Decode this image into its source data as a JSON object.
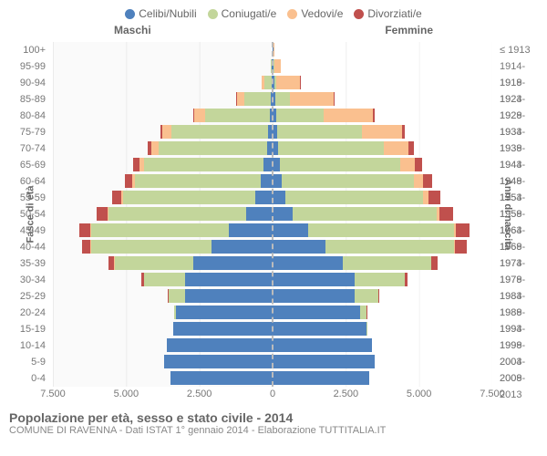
{
  "meta": {
    "type": "population-pyramid",
    "title": "Popolazione per età, sesso e stato civile - 2014",
    "subtitle": "COMUNE DI RAVENNA - Dati ISTAT 1° gennaio 2014 - Elaborazione TUTTITALIA.IT",
    "gender_labels": {
      "male": "Maschi",
      "female": "Femmine"
    },
    "y_axis_left_label": "Fasce di età",
    "y_axis_right_label": "Anni di nascita"
  },
  "legend": [
    {
      "key": "single",
      "label": "Celibi/Nubili",
      "color": "#4f81bd"
    },
    {
      "key": "married",
      "label": "Coniugati/e",
      "color": "#c3d69b"
    },
    {
      "key": "widowed",
      "label": "Vedovi/e",
      "color": "#fac08f"
    },
    {
      "key": "divorced",
      "label": "Divorziati/e",
      "color": "#c0504d"
    }
  ],
  "colors": {
    "single": "#4f81bd",
    "married": "#c3d69b",
    "widowed": "#fac08f",
    "divorced": "#c0504d",
    "grid": "#e0e0e0",
    "center": "#bbbbbb",
    "text": "#666666"
  },
  "x_axis": {
    "max": 7500,
    "ticks": [
      7500,
      5000,
      2500,
      0,
      2500,
      5000,
      7500
    ],
    "tick_labels": [
      "7.500",
      "5.000",
      "2.500",
      "0",
      "2.500",
      "5.000",
      "7.500"
    ]
  },
  "age_groups": [
    "100+",
    "95-99",
    "90-94",
    "85-89",
    "80-84",
    "75-79",
    "70-74",
    "65-69",
    "60-64",
    "55-59",
    "50-54",
    "45-49",
    "40-44",
    "35-39",
    "30-34",
    "25-29",
    "20-24",
    "15-19",
    "10-14",
    "5-9",
    "0-4"
  ],
  "birth_years": [
    "≤ 1913",
    "1914-1918",
    "1919-1923",
    "1924-1928",
    "1929-1933",
    "1934-1938",
    "1939-1943",
    "1944-1948",
    "1949-1953",
    "1954-1958",
    "1959-1963",
    "1964-1968",
    "1969-1973",
    "1974-1978",
    "1979-1983",
    "1984-1988",
    "1989-1993",
    "1994-1998",
    "1999-2003",
    "2004-2008",
    "2009-2013"
  ],
  "data": {
    "male": [
      {
        "single": 10,
        "married": 0,
        "widowed": 0,
        "divorced": 0
      },
      {
        "single": 30,
        "married": 20,
        "widowed": 20,
        "divorced": 0
      },
      {
        "single": 40,
        "married": 250,
        "widowed": 80,
        "divorced": 0
      },
      {
        "single": 60,
        "married": 900,
        "widowed": 260,
        "divorced": 20
      },
      {
        "single": 100,
        "married": 2200,
        "widowed": 380,
        "divorced": 40
      },
      {
        "single": 150,
        "married": 3300,
        "widowed": 320,
        "divorced": 60
      },
      {
        "single": 200,
        "married": 3700,
        "widowed": 250,
        "divorced": 120
      },
      {
        "single": 300,
        "married": 4100,
        "widowed": 150,
        "divorced": 200
      },
      {
        "single": 400,
        "married": 4300,
        "widowed": 90,
        "divorced": 260
      },
      {
        "single": 600,
        "married": 4500,
        "widowed": 60,
        "divorced": 330
      },
      {
        "single": 900,
        "married": 4700,
        "widowed": 40,
        "divorced": 380
      },
      {
        "single": 1500,
        "married": 4700,
        "widowed": 25,
        "divorced": 380
      },
      {
        "single": 2100,
        "married": 4100,
        "widowed": 15,
        "divorced": 300
      },
      {
        "single": 2700,
        "married": 2700,
        "widowed": 8,
        "divorced": 180
      },
      {
        "single": 3000,
        "married": 1400,
        "widowed": 3,
        "divorced": 80
      },
      {
        "single": 3000,
        "married": 550,
        "widowed": 0,
        "divorced": 20
      },
      {
        "single": 3300,
        "married": 70,
        "widowed": 0,
        "divorced": 0
      },
      {
        "single": 3400,
        "married": 0,
        "widowed": 0,
        "divorced": 0
      },
      {
        "single": 3600,
        "married": 0,
        "widowed": 0,
        "divorced": 0
      },
      {
        "single": 3700,
        "married": 0,
        "widowed": 0,
        "divorced": 0
      },
      {
        "single": 3500,
        "married": 0,
        "widowed": 0,
        "divorced": 0
      }
    ],
    "female": [
      {
        "single": 30,
        "married": 0,
        "widowed": 30,
        "divorced": 0
      },
      {
        "single": 40,
        "married": 10,
        "widowed": 220,
        "divorced": 0
      },
      {
        "single": 60,
        "married": 80,
        "widowed": 800,
        "divorced": 10
      },
      {
        "single": 100,
        "married": 500,
        "widowed": 1500,
        "divorced": 30
      },
      {
        "single": 130,
        "married": 1600,
        "widowed": 1700,
        "divorced": 60
      },
      {
        "single": 160,
        "married": 2900,
        "widowed": 1350,
        "divorced": 100
      },
      {
        "single": 200,
        "married": 3600,
        "widowed": 850,
        "divorced": 170
      },
      {
        "single": 260,
        "married": 4100,
        "widowed": 500,
        "divorced": 260
      },
      {
        "single": 320,
        "married": 4500,
        "willowed": 0,
        "widowed": 300,
        "divorced": 330
      },
      {
        "single": 450,
        "married": 4700,
        "widowed": 180,
        "divorced": 400
      },
      {
        "single": 700,
        "married": 4900,
        "widowed": 110,
        "divorced": 450
      },
      {
        "single": 1200,
        "married": 5000,
        "widowed": 60,
        "divorced": 460
      },
      {
        "single": 1800,
        "married": 4400,
        "widowed": 35,
        "divorced": 380
      },
      {
        "single": 2400,
        "married": 3000,
        "widowed": 15,
        "divorced": 220
      },
      {
        "single": 2800,
        "married": 1700,
        "widowed": 6,
        "divorced": 110
      },
      {
        "single": 2800,
        "married": 800,
        "widowed": 2,
        "divorced": 35
      },
      {
        "single": 3000,
        "married": 200,
        "widowed": 0,
        "divorced": 5
      },
      {
        "single": 3200,
        "married": 15,
        "widowed": 0,
        "divorced": 0
      },
      {
        "single": 3400,
        "married": 0,
        "widowed": 0,
        "divorced": 0
      },
      {
        "single": 3500,
        "married": 0,
        "widowed": 0,
        "divorced": 0
      },
      {
        "single": 3300,
        "married": 0,
        "widowed": 0,
        "divorced": 0
      }
    ]
  }
}
